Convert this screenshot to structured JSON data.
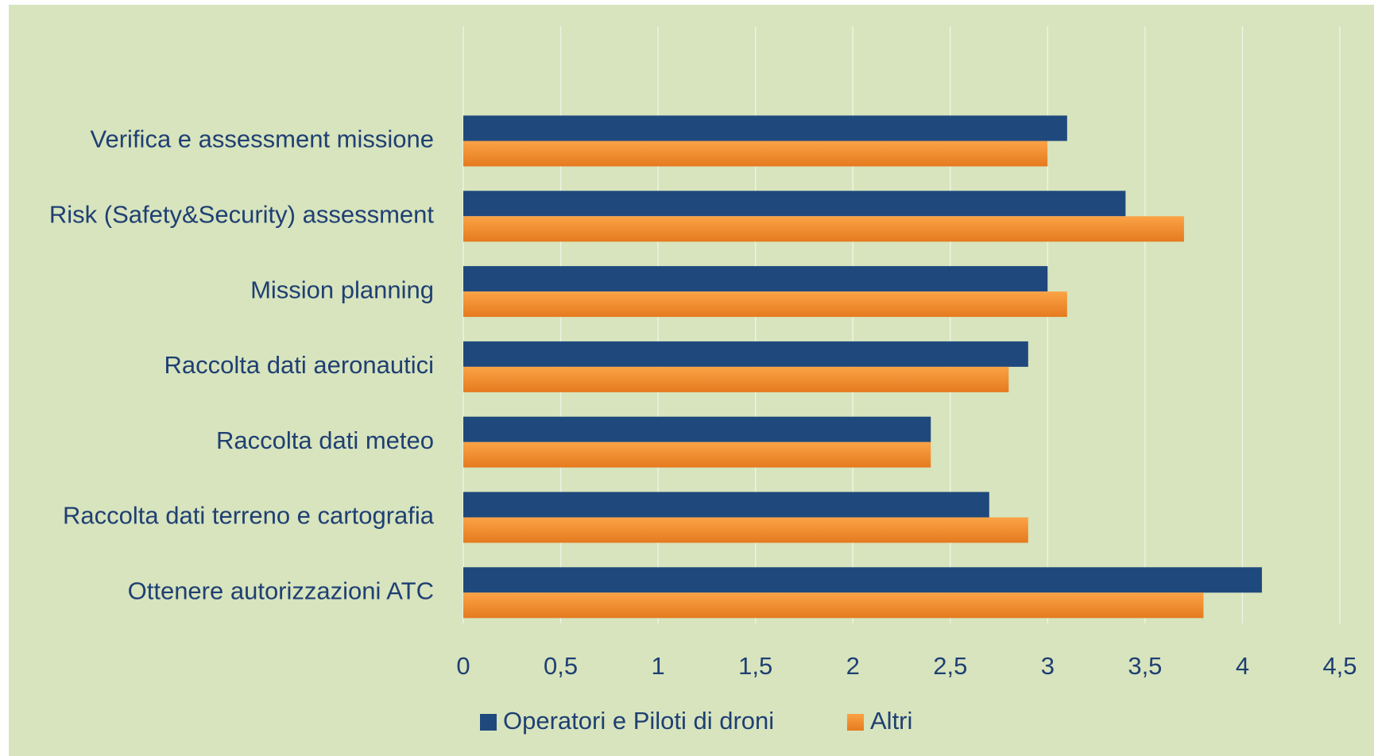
{
  "chart_data": {
    "type": "hbar",
    "categories": [
      "Verifica e assessment missione",
      "Risk (Safety&Security) assessment",
      "Mission planning",
      "Raccolta dati aeronautici",
      "Raccolta dati meteo",
      "Raccolta dati terreno e cartografia",
      "Ottenere autorizzazioni ATC"
    ],
    "series": [
      {
        "name": "Operatori e Piloti di droni",
        "color": "#1f497d",
        "values": [
          3.1,
          3.4,
          3.0,
          2.9,
          2.4,
          2.7,
          4.1
        ]
      },
      {
        "name": "Altri",
        "color": "#f79234",
        "values": [
          3.0,
          3.7,
          3.1,
          2.8,
          2.4,
          2.9,
          3.8
        ]
      }
    ],
    "xlim": [
      0,
      4.5
    ],
    "xticks": [
      0,
      {
        "value": 0.5,
        "label": "0,5"
      },
      1,
      {
        "value": 1.5,
        "label": "1,5"
      },
      2,
      {
        "value": 2.5,
        "label": "2,5"
      },
      3,
      {
        "value": 3.5,
        "label": "3,5"
      },
      4,
      {
        "value": 4.5,
        "label": "4,5"
      }
    ],
    "grid": true,
    "legend": "bottom"
  }
}
